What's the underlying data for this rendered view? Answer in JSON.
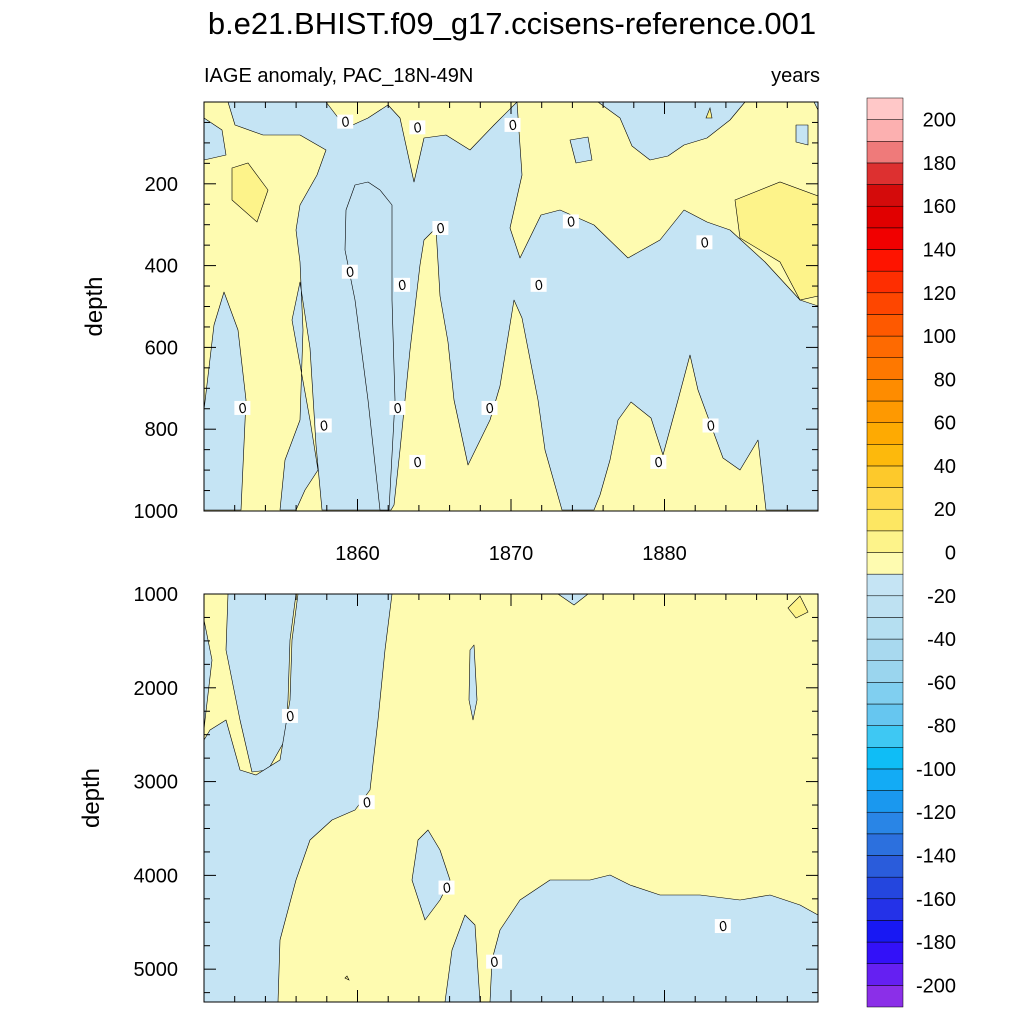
{
  "title": "b.e21.BHIST.f09_g17.ccisens-reference.001",
  "subtitle_left": "IAGE anomaly, PAC_18N-49N",
  "subtitle_right": "years",
  "colors": {
    "positive_fill": "#fefbb0",
    "positive_fill_strong": "#fdf38a",
    "negative_fill": "#c5e4f4",
    "contour_line": "#000000"
  },
  "chart_data": [
    {
      "type": "heatmap",
      "panel": "upper",
      "ylabel": "depth",
      "xlabel": "",
      "xlim": [
        1850,
        1890
      ],
      "ylim": [
        1000,
        0
      ],
      "x_ticks": [
        1860,
        1870,
        1880
      ],
      "y_ticks": [
        200,
        400,
        600,
        800,
        1000
      ],
      "contour_labels": [
        {
          "text": "0",
          "x": 1859.2,
          "y": 48
        },
        {
          "text": "0",
          "x": 1863.9,
          "y": 62
        },
        {
          "text": "0",
          "x": 1870.1,
          "y": 56
        },
        {
          "text": "0",
          "x": 1873.9,
          "y": 292
        },
        {
          "text": "0",
          "x": 1865.4,
          "y": 308
        },
        {
          "text": "0",
          "x": 1882.6,
          "y": 343
        },
        {
          "text": "0",
          "x": 1859.5,
          "y": 415
        },
        {
          "text": "0",
          "x": 1862.9,
          "y": 447
        },
        {
          "text": "0",
          "x": 1871.8,
          "y": 447
        },
        {
          "text": "0",
          "x": 1852.5,
          "y": 748
        },
        {
          "text": "0",
          "x": 1857.8,
          "y": 791
        },
        {
          "text": "0",
          "x": 1862.6,
          "y": 748
        },
        {
          "text": "0",
          "x": 1868.6,
          "y": 748
        },
        {
          "text": "0",
          "x": 1883.0,
          "y": 791
        },
        {
          "text": "0",
          "x": 1863.9,
          "y": 880
        },
        {
          "text": "0",
          "x": 1879.6,
          "y": 880
        }
      ]
    },
    {
      "type": "heatmap",
      "panel": "lower",
      "ylabel": "depth",
      "xlabel": "",
      "xlim": [
        1850,
        1890
      ],
      "ylim": [
        5350,
        1000
      ],
      "x_ticks": [
        1860,
        1870,
        1880
      ],
      "y_ticks": [
        1000,
        2000,
        3000,
        4000,
        5000
      ],
      "contour_labels": [
        {
          "text": "0",
          "x": 1855.6,
          "y": 2300
        },
        {
          "text": "0",
          "x": 1860.6,
          "y": 3220
        },
        {
          "text": "0",
          "x": 1865.8,
          "y": 4130
        },
        {
          "text": "0",
          "x": 1868.9,
          "y": 4920
        },
        {
          "text": "0",
          "x": 1883.8,
          "y": 4540
        }
      ]
    }
  ],
  "colorbar": {
    "labels": [
      "200",
      "180",
      "160",
      "140",
      "120",
      "100",
      "80",
      "60",
      "40",
      "20",
      "0",
      "-20",
      "-40",
      "-60",
      "-80",
      "-100",
      "-120",
      "-140",
      "-160",
      "-180",
      "-200"
    ],
    "min": -210,
    "max": 210,
    "step": 10,
    "colors": [
      "#8b2fe8",
      "#6520f2",
      "#3311f8",
      "#1818f3",
      "#2432e8",
      "#2446de",
      "#2a5cdb",
      "#2c70de",
      "#2985e6",
      "#1a98ef",
      "#13abf5",
      "#0fbdf6",
      "#3ec8f3",
      "#66c6f0",
      "#80cff0",
      "#9ad5ee",
      "#a8d9ef",
      "#b5dff1",
      "#bee1f2",
      "#c5e4f4",
      "#fefbb0",
      "#fdf38a",
      "#fde762",
      "#fed84b",
      "#fdc92b",
      "#fdb90c",
      "#feaa02",
      "#fe9901",
      "#fe8c00",
      "#fe7800",
      "#fe6a01",
      "#fe5900",
      "#fe4600",
      "#fe2e01",
      "#fe1400",
      "#f10000",
      "#e10000",
      "#d40b0b",
      "#dd3030",
      "#ef7a7a",
      "#fcb0b0",
      "#ffc8c8"
    ]
  }
}
